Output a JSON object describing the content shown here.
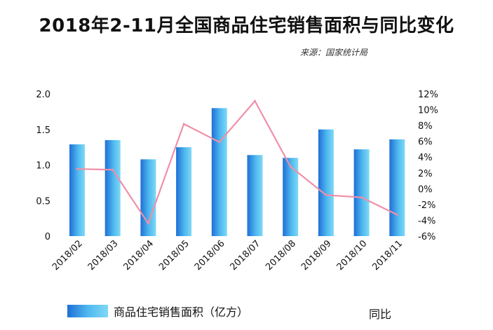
{
  "title": "2018年2-11月全国商品住宅销售面积与同比变化",
  "source": "来源：国家统计局",
  "colors": {
    "bar_dark": "#1f6fd6",
    "bar_light": "#7fd9f6",
    "line": "#f08fa8",
    "text": "#111111"
  },
  "chart_data": {
    "type": "bar+line",
    "categories": [
      "2018/02",
      "2018/03",
      "2018/04",
      "2018/05",
      "2018/06",
      "2018/07",
      "2018/08",
      "2018/09",
      "2018/10",
      "2018/11"
    ],
    "series": [
      {
        "name": "商品住宅销售面积（亿方）",
        "type": "bar",
        "axis": "left",
        "values": [
          1.29,
          1.35,
          1.08,
          1.25,
          1.8,
          1.14,
          1.1,
          1.5,
          1.22,
          1.36
        ]
      },
      {
        "name": "同比",
        "type": "line",
        "axis": "right",
        "values": [
          2.5,
          2.4,
          -4.4,
          8.2,
          5.9,
          11.1,
          2.8,
          -0.8,
          -1.1,
          -3.3
        ]
      }
    ],
    "y_left": {
      "ylim": [
        0,
        2.0
      ],
      "ticks": [
        "0",
        "0.5",
        "1.0",
        "1.5",
        "2.0"
      ]
    },
    "y_right": {
      "ylim": [
        -6,
        12
      ],
      "ticks": [
        "12%",
        "10%",
        "8%",
        "6%",
        "4%",
        "2%",
        "0%",
        "-2%",
        "-4%",
        "-6%"
      ]
    },
    "grid": false,
    "legend": "bottom"
  }
}
